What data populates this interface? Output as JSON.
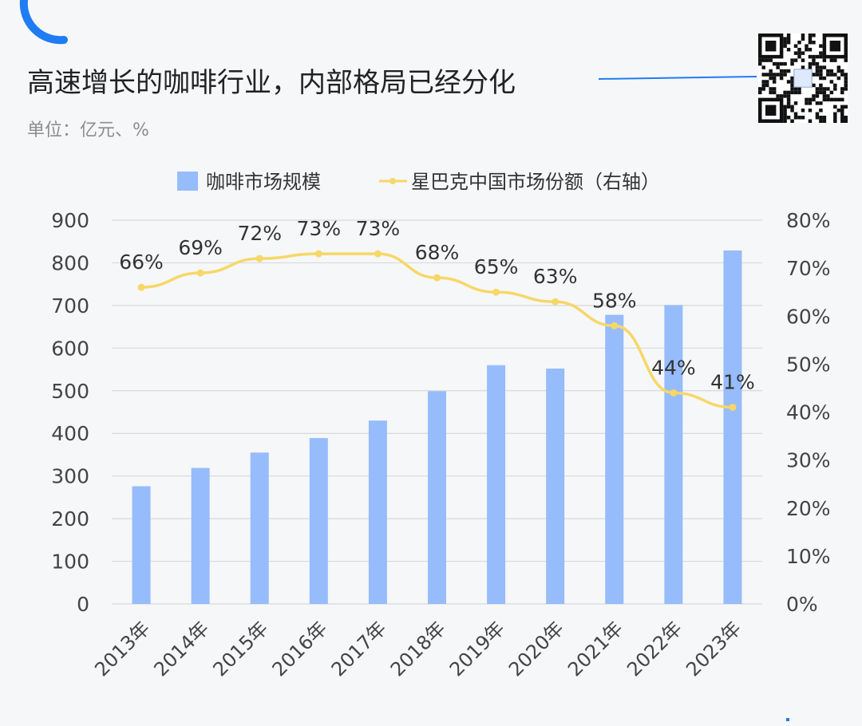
{
  "colors": {
    "bar": "#96bcfb",
    "line": "#f7d768",
    "accent": "#1f7cf2",
    "grid": "#d9d9d9",
    "background": "#f6f7f9"
  },
  "icons": {
    "corner_mark": "arc-icon",
    "qr": "qr-code-icon"
  },
  "chart_data": {
    "type": "bar",
    "title": "高速增长的咖啡行业，内部格局已经分化",
    "unit_label": "单位：亿元、%",
    "categories": [
      "2013年",
      "2014年",
      "2015年",
      "2016年",
      "2017年",
      "2018年",
      "2019年",
      "2020年",
      "2021年",
      "2022年",
      "2023年"
    ],
    "series": [
      {
        "name": "咖啡市场规模",
        "type": "bar",
        "axis": "left",
        "values": [
          276,
          319,
          355,
          389,
          430,
          499,
          560,
          552,
          678,
          701,
          829
        ]
      },
      {
        "name": "星巴克中国市场份额（右轴）",
        "type": "line",
        "axis": "right",
        "values": [
          66,
          69,
          72,
          73,
          73,
          68,
          65,
          63,
          58,
          44,
          41
        ],
        "labels": [
          "66%",
          "69%",
          "72%",
          "73%",
          "73%",
          "68%",
          "65%",
          "63%",
          "58%",
          "44%",
          "41%"
        ]
      }
    ],
    "y_left": {
      "min": 0,
      "max": 900,
      "ticks": [
        "0",
        "100",
        "200",
        "300",
        "400",
        "500",
        "600",
        "700",
        "800",
        "900"
      ]
    },
    "y_right": {
      "min": 0,
      "max": 80,
      "ticks": [
        "0%",
        "10%",
        "20%",
        "30%",
        "40%",
        "50%",
        "60%",
        "70%",
        "80%"
      ]
    },
    "grid": true,
    "legend": "top-center"
  }
}
